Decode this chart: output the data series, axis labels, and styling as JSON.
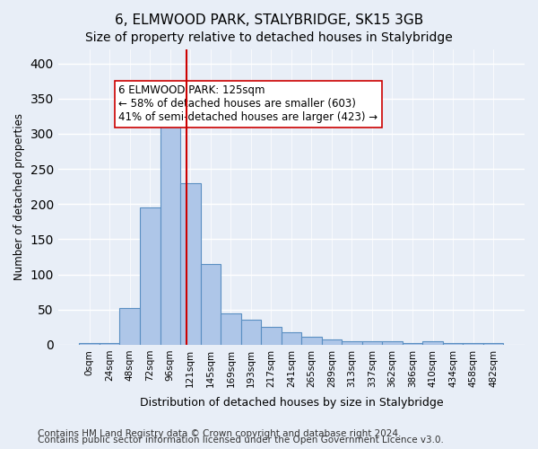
{
  "title": "6, ELMWOOD PARK, STALYBRIDGE, SK15 3GB",
  "subtitle": "Size of property relative to detached houses in Stalybridge",
  "xlabel": "Distribution of detached houses by size in Stalybridge",
  "ylabel": "Number of detached properties",
  "categories": [
    "0sqm",
    "24sqm",
    "48sqm",
    "72sqm",
    "96sqm",
    "121sqm",
    "145sqm",
    "169sqm",
    "193sqm",
    "217sqm",
    "241sqm",
    "265sqm",
    "289sqm",
    "313sqm",
    "337sqm",
    "362sqm",
    "386sqm",
    "410sqm",
    "434sqm",
    "458sqm",
    "482sqm"
  ],
  "values": [
    2,
    2,
    52,
    195,
    320,
    230,
    115,
    45,
    35,
    25,
    18,
    12,
    7,
    5,
    5,
    5,
    2,
    5,
    2,
    2,
    2
  ],
  "bar_color": "#aec6e8",
  "bar_edge_color": "#5a8fc2",
  "bar_edge_width": 0.8,
  "background_color": "#e8eef7",
  "grid_color": "#ffffff",
  "ylim": [
    0,
    420
  ],
  "yticks": [
    0,
    50,
    100,
    150,
    200,
    250,
    300,
    350,
    400
  ],
  "property_line_x": 4.8,
  "property_line_color": "#cc0000",
  "annotation_text": "6 ELMWOOD PARK: 125sqm\n← 58% of detached houses are smaller (603)\n41% of semi-detached houses are larger (423) →",
  "annotation_box_color": "#ffffff",
  "annotation_box_edge": "#cc0000",
  "footer_line1": "Contains HM Land Registry data © Crown copyright and database right 2024.",
  "footer_line2": "Contains public sector information licensed under the Open Government Licence v3.0.",
  "title_fontsize": 11,
  "subtitle_fontsize": 10,
  "annot_fontsize": 8.5,
  "footer_fontsize": 7.5
}
